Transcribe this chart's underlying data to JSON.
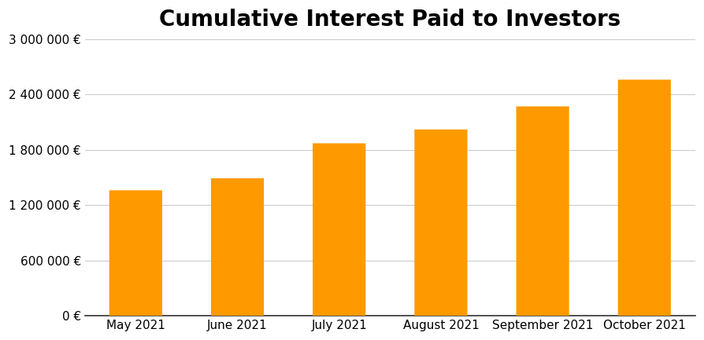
{
  "title": "Cumulative Interest Paid to Investors",
  "categories": [
    "May 2021",
    "June 2021",
    "July 2021",
    "August 2021",
    "September 2021",
    "October 2021"
  ],
  "values": [
    1360000,
    1490000,
    1870000,
    2020000,
    2270000,
    2560000
  ],
  "bar_color": "#FF9900",
  "ylim": [
    0,
    3000000
  ],
  "yticks": [
    0,
    600000,
    1200000,
    1800000,
    2400000,
    3000000
  ],
  "ytick_labels": [
    "0 €",
    "600 000 €",
    "1 200 000 €",
    "1 800 000 €",
    "2 400 000 €",
    "3 000 000 €"
  ],
  "background_color": "#ffffff",
  "grid_color": "#cccccc",
  "title_fontsize": 20,
  "tick_fontsize": 11,
  "bar_width": 0.52,
  "bar_rounding": 0.04
}
